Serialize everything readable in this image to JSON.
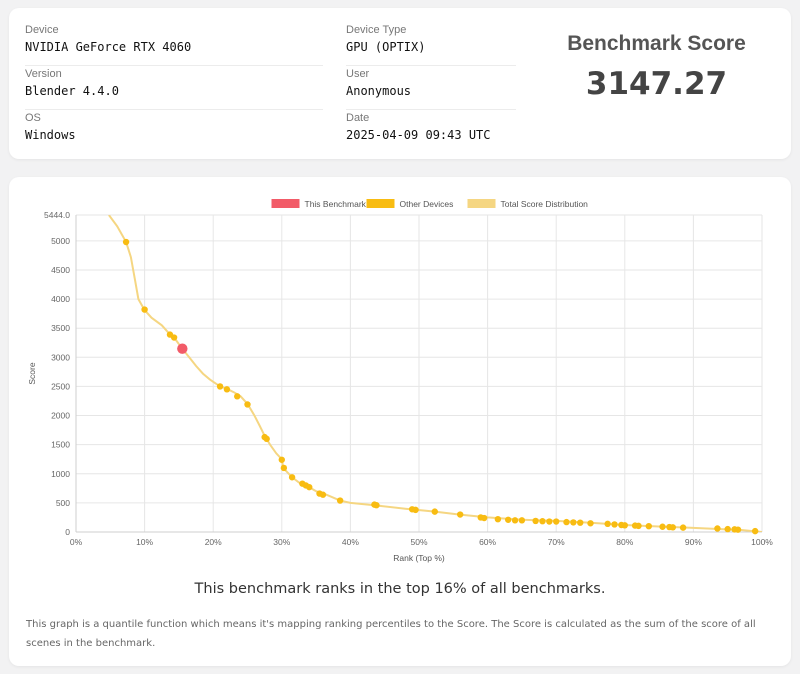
{
  "device_info": {
    "device_label": "Device",
    "device_value": "NVIDIA GeForce RTX 4060",
    "version_label": "Version",
    "version_value": "Blender 4.4.0",
    "os_label": "OS",
    "os_value": "Windows",
    "device_type_label": "Device Type",
    "device_type_value": "GPU (OPTIX)",
    "user_label": "User",
    "user_value": "Anonymous",
    "date_label": "Date",
    "date_value": "2025-04-09 09:43 UTC"
  },
  "score": {
    "title": "Benchmark Score",
    "value": "3147.27"
  },
  "rank_text": "This benchmark ranks in the top 16% of all benchmarks.",
  "note_text": "This graph is a quantile function which means it's mapping ranking percentiles to the Score. The Score is calculated as the sum of the score of all scenes in the benchmark.",
  "colors": {
    "this_benchmark": "#f25b68",
    "other_devices": "#f8bc12",
    "distribution": "#f5d682"
  },
  "chart_data": {
    "type": "line",
    "xlabel": "Rank (Top %)",
    "ylabel": "Score",
    "xlim": [
      0,
      100
    ],
    "ylim": [
      0,
      5444
    ],
    "x_ticks": [
      "0%",
      "10%",
      "20%",
      "30%",
      "40%",
      "50%",
      "60%",
      "70%",
      "80%",
      "90%",
      "100%"
    ],
    "y_ticks": [
      "0",
      "500",
      "1000",
      "1500",
      "2000",
      "2500",
      "3000",
      "3500",
      "4000",
      "4500",
      "5000",
      "5444.0"
    ],
    "y_tick_values": [
      0,
      500,
      1000,
      1500,
      2000,
      2500,
      3000,
      3500,
      4000,
      4500,
      5000,
      5444
    ],
    "grid": true,
    "legend_position": "top",
    "legend": [
      "This Benchmark",
      "Other Devices",
      "Total Score Distribution"
    ],
    "series": [
      {
        "name": "Total Score Distribution",
        "points": [
          [
            4.8,
            5444
          ],
          [
            6,
            5250
          ],
          [
            7.3,
            4980
          ],
          [
            8,
            4720
          ],
          [
            8.6,
            4330
          ],
          [
            9.1,
            4000
          ],
          [
            10,
            3810
          ],
          [
            11,
            3680
          ],
          [
            12.5,
            3550
          ],
          [
            13.5,
            3420
          ],
          [
            14.3,
            3340
          ],
          [
            15.5,
            3147
          ],
          [
            16.5,
            3000
          ],
          [
            17.5,
            2850
          ],
          [
            18.5,
            2720
          ],
          [
            19.5,
            2620
          ],
          [
            20,
            2580
          ],
          [
            21,
            2500
          ],
          [
            22,
            2460
          ],
          [
            23,
            2400
          ],
          [
            24,
            2330
          ],
          [
            25,
            2200
          ],
          [
            26,
            2000
          ],
          [
            26.8,
            1820
          ],
          [
            27.5,
            1650
          ],
          [
            28.3,
            1500
          ],
          [
            29.2,
            1350
          ],
          [
            30,
            1250
          ],
          [
            30.2,
            1100
          ],
          [
            31.5,
            940
          ],
          [
            32.5,
            850
          ],
          [
            34,
            770
          ],
          [
            35,
            700
          ],
          [
            36.5,
            640
          ],
          [
            38.5,
            540
          ],
          [
            40,
            500
          ],
          [
            43.5,
            460
          ],
          [
            48,
            400
          ],
          [
            52.3,
            350
          ],
          [
            55.8,
            300
          ],
          [
            60,
            250
          ],
          [
            65,
            210
          ],
          [
            70,
            190
          ],
          [
            75,
            160
          ],
          [
            80,
            120
          ],
          [
            85,
            95
          ],
          [
            90,
            70
          ],
          [
            94,
            50
          ],
          [
            97,
            35
          ],
          [
            100,
            0
          ]
        ]
      },
      {
        "name": "Other Devices",
        "points": [
          [
            7.3,
            4980
          ],
          [
            10,
            3820
          ],
          [
            13.7,
            3390
          ],
          [
            14.3,
            3340
          ],
          [
            21,
            2500
          ],
          [
            22,
            2450
          ],
          [
            23.5,
            2330
          ],
          [
            25,
            2190
          ],
          [
            27.5,
            1630
          ],
          [
            27.8,
            1600
          ],
          [
            30,
            1240
          ],
          [
            30.3,
            1100
          ],
          [
            31.5,
            940
          ],
          [
            33,
            830
          ],
          [
            33.5,
            800
          ],
          [
            34,
            770
          ],
          [
            35.5,
            660
          ],
          [
            36,
            640
          ],
          [
            38.5,
            540
          ],
          [
            43.5,
            470
          ],
          [
            43.8,
            460
          ],
          [
            49,
            390
          ],
          [
            49.5,
            380
          ],
          [
            52.3,
            350
          ],
          [
            56,
            300
          ],
          [
            59,
            250
          ],
          [
            59.5,
            240
          ],
          [
            61.5,
            220
          ],
          [
            63,
            210
          ],
          [
            64,
            200
          ],
          [
            65,
            200
          ],
          [
            67,
            190
          ],
          [
            68,
            185
          ],
          [
            69,
            180
          ],
          [
            70,
            180
          ],
          [
            71.5,
            170
          ],
          [
            72.5,
            165
          ],
          [
            73.5,
            160
          ],
          [
            75,
            150
          ],
          [
            77.5,
            140
          ],
          [
            78.5,
            130
          ],
          [
            79.5,
            120
          ],
          [
            80,
            115
          ],
          [
            81.5,
            110
          ],
          [
            82,
            105
          ],
          [
            83.5,
            100
          ],
          [
            85.5,
            90
          ],
          [
            86.5,
            85
          ],
          [
            87,
            80
          ],
          [
            88.5,
            75
          ],
          [
            93.5,
            60
          ],
          [
            95,
            50
          ],
          [
            96,
            45
          ],
          [
            96.5,
            40
          ],
          [
            99,
            15
          ]
        ]
      },
      {
        "name": "This Benchmark",
        "points": [
          [
            15.5,
            3147.27
          ]
        ]
      }
    ]
  }
}
